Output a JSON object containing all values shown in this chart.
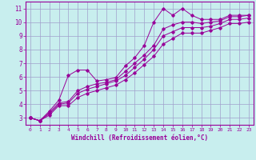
{
  "xlabel": "Windchill (Refroidissement éolien,°C)",
  "bg_color": "#c8eeee",
  "grid_color": "#a0a0cc",
  "line_color": "#990099",
  "xlim": [
    -0.5,
    23.5
  ],
  "ylim": [
    2.5,
    11.5
  ],
  "xticks": [
    0,
    1,
    2,
    3,
    4,
    5,
    6,
    7,
    8,
    9,
    10,
    11,
    12,
    13,
    14,
    15,
    16,
    17,
    18,
    19,
    20,
    21,
    22,
    23
  ],
  "yticks": [
    3,
    4,
    5,
    6,
    7,
    8,
    9,
    10,
    11
  ],
  "line1_x": [
    0,
    1,
    2,
    3,
    4,
    5,
    6,
    7,
    8,
    9,
    10,
    11,
    12,
    13,
    14,
    15,
    16,
    17,
    18,
    19,
    20,
    21,
    22,
    23
  ],
  "line1_y": [
    3.0,
    2.8,
    3.5,
    4.3,
    6.1,
    6.5,
    6.5,
    5.7,
    5.8,
    5.95,
    6.8,
    7.4,
    8.3,
    10.0,
    11.0,
    10.5,
    11.0,
    10.5,
    10.2,
    10.2,
    10.2,
    10.5,
    10.5,
    10.5
  ],
  "line2_x": [
    0,
    1,
    2,
    3,
    4,
    5,
    6,
    7,
    8,
    9,
    10,
    11,
    12,
    13,
    14,
    15,
    16,
    17,
    18,
    19,
    20,
    21,
    22,
    23
  ],
  "line2_y": [
    3.0,
    2.8,
    3.4,
    4.1,
    4.2,
    5.0,
    5.3,
    5.5,
    5.6,
    5.8,
    6.4,
    7.0,
    7.6,
    8.3,
    9.5,
    9.8,
    10.0,
    10.0,
    9.9,
    10.0,
    10.1,
    10.4,
    10.4,
    10.5
  ],
  "line3_x": [
    0,
    1,
    2,
    3,
    4,
    5,
    6,
    7,
    8,
    9,
    10,
    11,
    12,
    13,
    14,
    15,
    16,
    17,
    18,
    19,
    20,
    21,
    22,
    23
  ],
  "line3_y": [
    3.0,
    2.8,
    3.3,
    4.0,
    4.1,
    4.8,
    5.1,
    5.3,
    5.5,
    5.7,
    6.1,
    6.7,
    7.3,
    8.0,
    9.0,
    9.3,
    9.6,
    9.6,
    9.6,
    9.7,
    9.9,
    10.2,
    10.2,
    10.3
  ],
  "line4_x": [
    0,
    1,
    2,
    3,
    4,
    5,
    6,
    7,
    8,
    9,
    10,
    11,
    12,
    13,
    14,
    15,
    16,
    17,
    18,
    19,
    20,
    21,
    22,
    23
  ],
  "line4_y": [
    3.0,
    2.8,
    3.2,
    3.9,
    3.9,
    4.5,
    4.8,
    5.0,
    5.2,
    5.4,
    5.8,
    6.3,
    6.9,
    7.5,
    8.4,
    8.8,
    9.2,
    9.2,
    9.2,
    9.4,
    9.6,
    9.9,
    9.9,
    10.0
  ]
}
